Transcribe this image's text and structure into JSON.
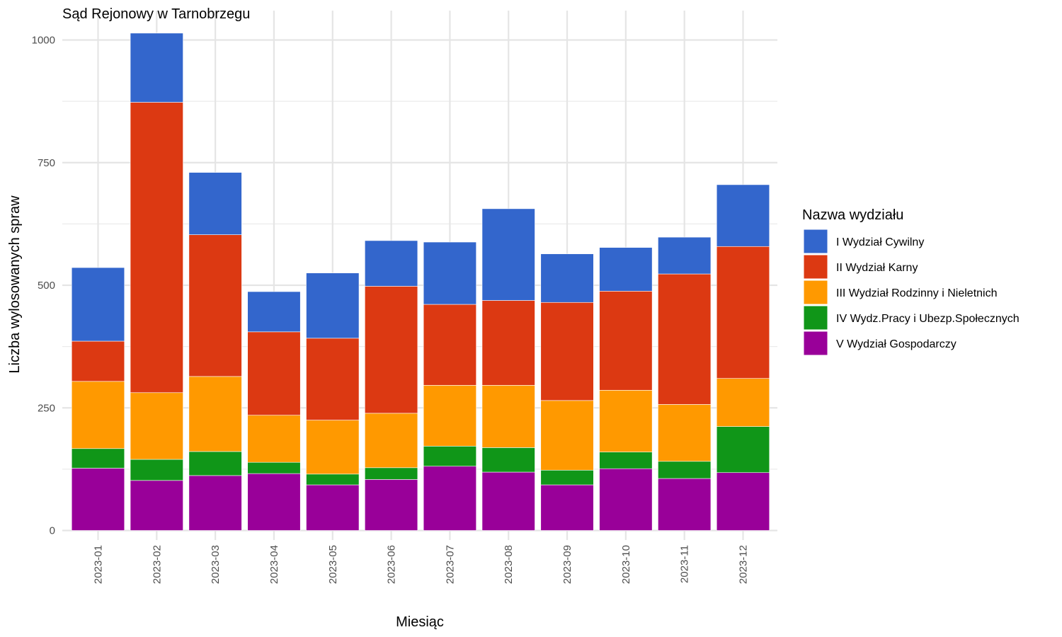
{
  "chart_data": {
    "type": "bar",
    "stacked": true,
    "title": "Sąd Rejonowy w Tarnobrzegu",
    "xlabel": "Miesiąc",
    "ylabel": "Liczba wylosowanych spraw",
    "ylim": [
      0,
      1015
    ],
    "yticks": [
      0,
      250,
      500,
      750,
      1000
    ],
    "grid": true,
    "legend_title": "Nazwa wydziału",
    "legend_position": "right",
    "categories": [
      "2023-01",
      "2023-02",
      "2023-03",
      "2023-04",
      "2023-05",
      "2023-06",
      "2023-07",
      "2023-08",
      "2023-09",
      "2023-10",
      "2023-11",
      "2023-12"
    ],
    "series": [
      {
        "name": "V Wydział Gospodarczy",
        "color": "#990099",
        "values": [
          127,
          102,
          112,
          116,
          93,
          104,
          131,
          119,
          93,
          126,
          106,
          118
        ]
      },
      {
        "name": "IV Wydz.Pracy i Ubezp.Społecznych",
        "color": "#109618",
        "values": [
          40,
          43,
          49,
          23,
          22,
          24,
          41,
          50,
          30,
          34,
          35,
          94
        ]
      },
      {
        "name": "III Wydział Rodzinny i Nieletnich",
        "color": "#FF9900",
        "values": [
          137,
          136,
          153,
          96,
          110,
          111,
          124,
          127,
          142,
          126,
          116,
          98
        ]
      },
      {
        "name": "II Wydział Karny",
        "color": "#DC3912",
        "values": [
          82,
          592,
          289,
          170,
          167,
          259,
          165,
          173,
          200,
          202,
          266,
          269
        ]
      },
      {
        "name": "I Wydział Cywilny",
        "color": "#3366CC",
        "values": [
          150,
          141,
          127,
          82,
          133,
          93,
          127,
          187,
          99,
          89,
          75,
          126
        ]
      }
    ]
  }
}
